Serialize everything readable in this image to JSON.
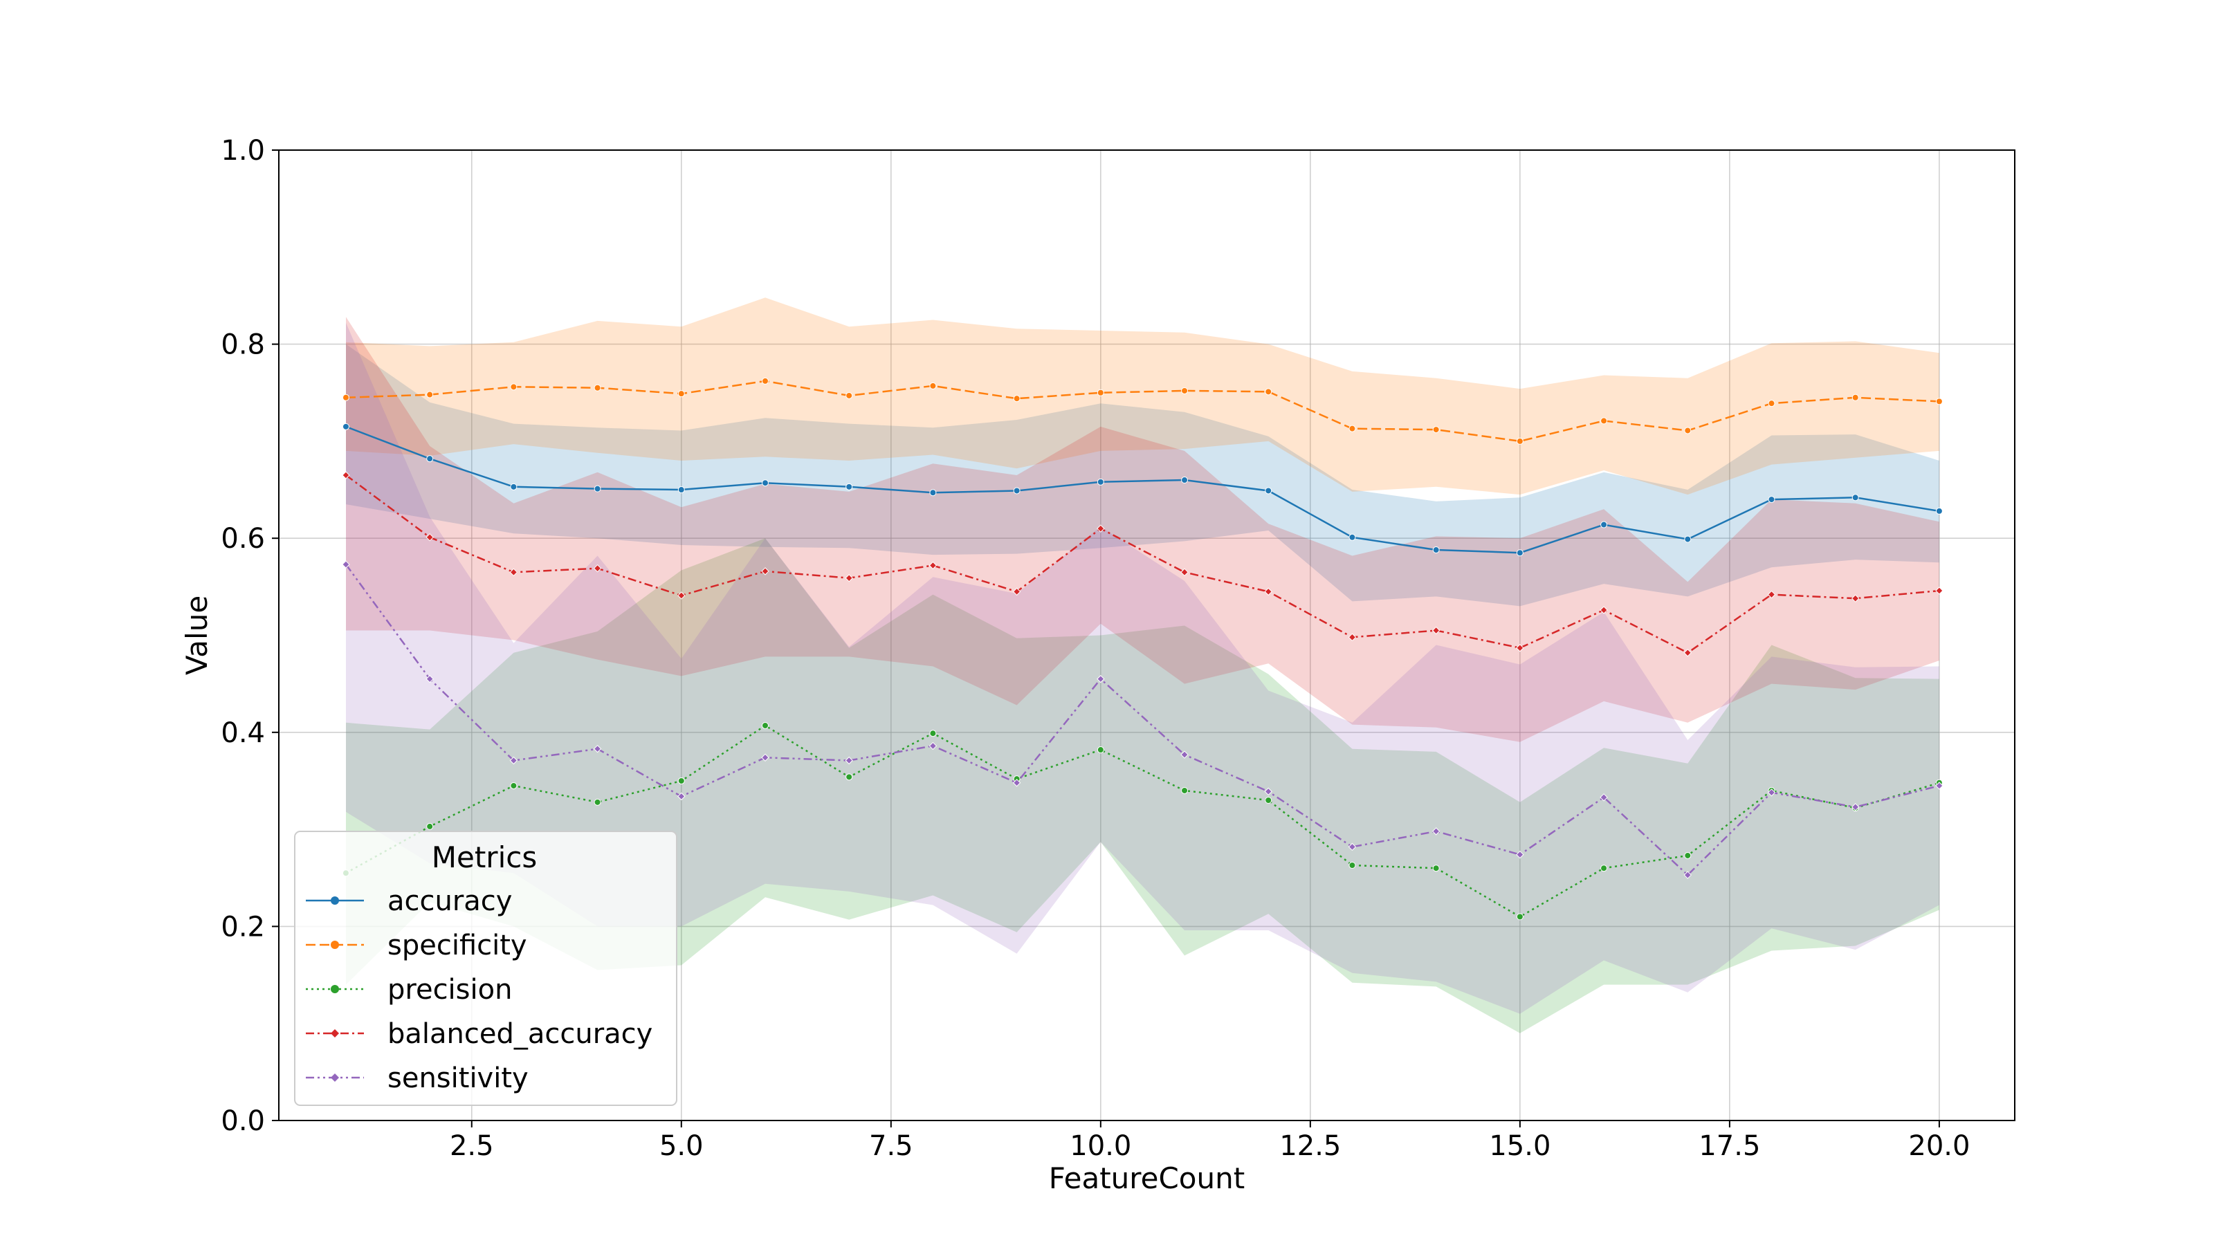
{
  "chart_data": {
    "type": "line",
    "xlabel": "FeatureCount",
    "ylabel": "Value",
    "xlim": [
      0.2,
      20.9
    ],
    "ylim": [
      0.0,
      1.0
    ],
    "xticks": [
      2.5,
      5.0,
      7.5,
      10.0,
      12.5,
      15.0,
      17.5,
      20.0
    ],
    "xtick_labels": [
      "2.5",
      "5.0",
      "7.5",
      "10.0",
      "12.5",
      "15.0",
      "17.5",
      "20.0"
    ],
    "yticks": [
      0.0,
      0.2,
      0.4,
      0.6,
      0.8,
      1.0
    ],
    "ytick_labels": [
      "0.0",
      "0.2",
      "0.4",
      "0.6",
      "0.8",
      "1.0"
    ],
    "grid": true,
    "legend": {
      "title": "Metrics",
      "position": "lower-left"
    },
    "x": [
      1,
      2,
      3,
      4,
      5,
      6,
      7,
      8,
      9,
      10,
      11,
      12,
      13,
      14,
      15,
      16,
      17,
      18,
      19,
      20
    ],
    "series": [
      {
        "name": "accuracy",
        "color": "#1f77b4",
        "dash": "solid",
        "marker": "circle",
        "values": [
          0.715,
          0.682,
          0.653,
          0.651,
          0.65,
          0.657,
          0.653,
          0.647,
          0.649,
          0.658,
          0.66,
          0.649,
          0.601,
          0.588,
          0.585,
          0.614,
          0.599,
          0.64,
          0.642,
          0.628
        ],
        "lower": [
          0.635,
          0.62,
          0.605,
          0.6,
          0.593,
          0.591,
          0.59,
          0.583,
          0.584,
          0.59,
          0.597,
          0.608,
          0.535,
          0.54,
          0.53,
          0.553,
          0.54,
          0.57,
          0.578,
          0.575
        ],
        "upper": [
          0.8,
          0.74,
          0.718,
          0.714,
          0.711,
          0.724,
          0.718,
          0.714,
          0.722,
          0.739,
          0.73,
          0.705,
          0.65,
          0.638,
          0.642,
          0.668,
          0.65,
          0.706,
          0.707,
          0.68
        ]
      },
      {
        "name": "specificity",
        "color": "#ff7f0e",
        "dash": "dashed",
        "marker": "circle",
        "values": [
          0.745,
          0.748,
          0.756,
          0.755,
          0.749,
          0.762,
          0.747,
          0.757,
          0.744,
          0.75,
          0.752,
          0.751,
          0.713,
          0.712,
          0.7,
          0.721,
          0.711,
          0.739,
          0.745,
          0.741
        ],
        "lower": [
          0.69,
          0.685,
          0.697,
          0.688,
          0.68,
          0.684,
          0.68,
          0.686,
          0.672,
          0.69,
          0.692,
          0.7,
          0.648,
          0.653,
          0.645,
          0.67,
          0.645,
          0.676,
          0.683,
          0.69
        ],
        "upper": [
          0.802,
          0.798,
          0.802,
          0.824,
          0.818,
          0.848,
          0.818,
          0.825,
          0.816,
          0.814,
          0.812,
          0.8,
          0.772,
          0.765,
          0.754,
          0.768,
          0.765,
          0.801,
          0.803,
          0.791
        ]
      },
      {
        "name": "precision",
        "color": "#2ca02c",
        "dash": "dotted",
        "marker": "circle",
        "values": [
          0.255,
          0.303,
          0.345,
          0.328,
          0.35,
          0.407,
          0.354,
          0.399,
          0.352,
          0.382,
          0.34,
          0.33,
          0.263,
          0.26,
          0.21,
          0.26,
          0.273,
          0.34,
          0.322,
          0.348
        ],
        "lower": [
          0.14,
          0.225,
          0.2,
          0.155,
          0.16,
          0.23,
          0.207,
          0.232,
          0.194,
          0.287,
          0.17,
          0.213,
          0.142,
          0.138,
          0.09,
          0.14,
          0.14,
          0.175,
          0.18,
          0.217
        ],
        "upper": [
          0.41,
          0.403,
          0.482,
          0.504,
          0.567,
          0.6,
          0.487,
          0.542,
          0.497,
          0.5,
          0.51,
          0.46,
          0.383,
          0.38,
          0.328,
          0.384,
          0.368,
          0.49,
          0.456,
          0.455
        ]
      },
      {
        "name": "balanced_accuracy",
        "color": "#d62728",
        "dash": "dashdot",
        "marker": "diamond",
        "values": [
          0.665,
          0.601,
          0.565,
          0.569,
          0.541,
          0.566,
          0.559,
          0.572,
          0.545,
          0.61,
          0.565,
          0.545,
          0.498,
          0.505,
          0.487,
          0.526,
          0.482,
          0.542,
          0.538,
          0.546
        ],
        "lower": [
          0.505,
          0.505,
          0.495,
          0.475,
          0.458,
          0.478,
          0.478,
          0.468,
          0.428,
          0.512,
          0.45,
          0.471,
          0.408,
          0.405,
          0.39,
          0.432,
          0.41,
          0.45,
          0.444,
          0.474
        ],
        "upper": [
          0.828,
          0.695,
          0.636,
          0.668,
          0.632,
          0.656,
          0.648,
          0.677,
          0.665,
          0.715,
          0.69,
          0.615,
          0.582,
          0.602,
          0.6,
          0.63,
          0.555,
          0.64,
          0.636,
          0.617
        ]
      },
      {
        "name": "sensitivity",
        "color": "#9467bd",
        "dash": "dashdotdot",
        "marker": "diamond",
        "values": [
          0.573,
          0.455,
          0.371,
          0.383,
          0.334,
          0.374,
          0.371,
          0.386,
          0.348,
          0.455,
          0.377,
          0.339,
          0.282,
          0.298,
          0.274,
          0.333,
          0.253,
          0.338,
          0.323,
          0.345
        ],
        "lower": [
          0.318,
          0.265,
          0.255,
          0.2,
          0.2,
          0.244,
          0.236,
          0.222,
          0.172,
          0.287,
          0.196,
          0.196,
          0.152,
          0.143,
          0.11,
          0.165,
          0.132,
          0.198,
          0.176,
          0.222
        ],
        "upper": [
          0.822,
          0.622,
          0.492,
          0.582,
          0.476,
          0.6,
          0.488,
          0.56,
          0.543,
          0.612,
          0.556,
          0.443,
          0.41,
          0.49,
          0.47,
          0.524,
          0.392,
          0.478,
          0.467,
          0.468
        ]
      }
    ]
  }
}
